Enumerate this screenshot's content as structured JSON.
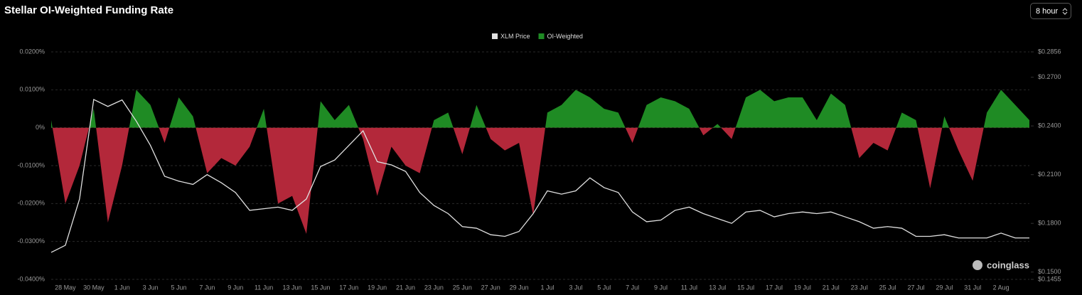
{
  "chart_data": {
    "type": "area-line",
    "title": "Stellar OI-Weighted Funding Rate",
    "categories": [
      null,
      "28 May",
      null,
      "30 May",
      null,
      "1 Jun",
      null,
      "3 Jun",
      null,
      "5 Jun",
      null,
      "7 Jun",
      null,
      "9 Jun",
      null,
      "11 Jun",
      null,
      "13 Jun",
      null,
      "15 Jun",
      null,
      "17 Jun",
      null,
      "19 Jun",
      null,
      "21 Jun",
      null,
      "23 Jun",
      null,
      "25 Jun",
      null,
      "27 Jun",
      null,
      "29 Jun",
      null,
      "1 Jul",
      null,
      "3 Jul",
      null,
      "5 Jul",
      null,
      "7 Jul",
      null,
      "9 Jul",
      null,
      "11 Jul",
      null,
      "13 Jul",
      null,
      "15 Jul",
      null,
      "17 Jul",
      null,
      "19 Jul",
      null,
      "21 Jul",
      null,
      "23 Jul",
      null,
      "25 Jul",
      null,
      "27 Jul",
      null,
      "29 Jul",
      null,
      "31 Jul",
      null,
      "2 Aug",
      null,
      null
    ],
    "series": [
      {
        "name": "XLM Price",
        "color": "#e0e0e0",
        "axis": "y2",
        "values": [
          0.1621,
          0.1665,
          0.195,
          0.2563,
          0.252,
          0.256,
          0.243,
          0.228,
          0.209,
          0.206,
          0.204,
          0.21,
          0.205,
          0.199,
          0.188,
          0.189,
          0.19,
          0.188,
          0.195,
          0.215,
          0.219,
          0.228,
          0.237,
          0.218,
          0.216,
          0.212,
          0.199,
          0.191,
          0.186,
          0.178,
          0.177,
          0.173,
          0.172,
          0.175,
          0.186,
          0.2,
          0.198,
          0.2,
          0.208,
          0.202,
          0.199,
          0.187,
          0.181,
          0.182,
          0.188,
          0.19,
          0.186,
          0.183,
          0.18,
          0.187,
          0.188,
          0.184,
          0.186,
          0.187,
          0.186,
          0.187,
          0.184,
          0.181,
          0.177,
          0.178,
          0.177,
          0.172,
          0.172,
          0.173,
          0.171,
          0.171,
          0.171,
          0.174,
          0.171,
          0.171
        ]
      },
      {
        "name": "OI-Weighted",
        "color": "#1f8b24",
        "negative_color": "#b3283a",
        "values": [
          0.002,
          -0.02,
          -0.01,
          0.005,
          -0.025,
          -0.01,
          0.01,
          0.006,
          -0.004,
          0.008,
          0.003,
          -0.012,
          -0.008,
          -0.01,
          -0.005,
          0.005,
          -0.02,
          -0.018,
          -0.028,
          0.007,
          0.002,
          0.006,
          -0.003,
          -0.018,
          -0.005,
          -0.01,
          -0.012,
          0.002,
          0.004,
          -0.007,
          0.006,
          -0.003,
          -0.006,
          -0.004,
          -0.023,
          0.004,
          0.006,
          0.01,
          0.008,
          0.005,
          0.004,
          -0.004,
          0.006,
          0.008,
          0.007,
          0.005,
          -0.002,
          0.001,
          -0.003,
          0.008,
          0.01,
          0.007,
          0.008,
          0.008,
          0.002,
          0.009,
          0.006,
          -0.008,
          -0.004,
          -0.006,
          0.004,
          0.002,
          -0.016,
          0.003,
          -0.006,
          -0.014,
          0.004,
          0.01,
          0.006,
          0.002
        ]
      }
    ],
    "ylim": [
      -0.04,
      0.02
    ],
    "yticks": [
      {
        "value": 0.02,
        "label": "0.0200%"
      },
      {
        "value": 0.01,
        "label": "0.0100%"
      },
      {
        "value": 0,
        "label": "0%"
      },
      {
        "value": -0.01,
        "label": "-0.0100%"
      },
      {
        "value": -0.02,
        "label": "-0.0200%"
      },
      {
        "value": -0.03,
        "label": "-0.0300%"
      },
      {
        "value": -0.04,
        "label": "-0.0400%"
      }
    ],
    "y2lim": [
      0.1455,
      0.2856
    ],
    "y2ticks": [
      {
        "value": 0.2856,
        "label": "$0.2856"
      },
      {
        "value": 0.27,
        "label": "$0.2700"
      },
      {
        "value": 0.24,
        "label": "$0.2400"
      },
      {
        "value": 0.21,
        "label": "$0.2100"
      },
      {
        "value": 0.18,
        "label": "$0.1800"
      },
      {
        "value": 0.15,
        "label": "$0.1500"
      },
      {
        "value": 0.1455,
        "label": "$0.1455"
      }
    ],
    "grid": true,
    "legend": "top"
  },
  "ui": {
    "interval": "8 hour",
    "watermark": "coinglass"
  }
}
